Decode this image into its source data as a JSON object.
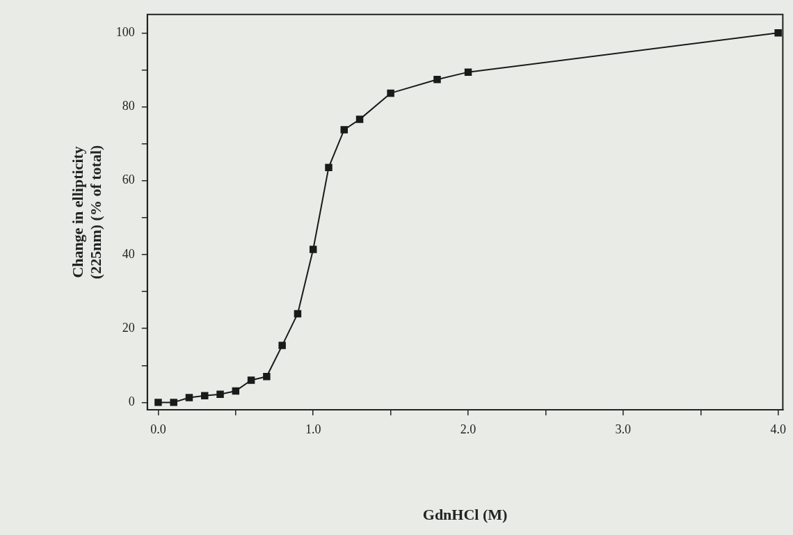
{
  "chart_data": {
    "type": "line",
    "xlabel": "GdnHCl (M)",
    "ylabel": "Change in ellipticity\n(225nm) (% of total)",
    "x": [
      0,
      0.1,
      0.2,
      0.3,
      0.4,
      0.5,
      0.6,
      0.7,
      0.8,
      0.9,
      1.0,
      1.1,
      1.2,
      1.3,
      1.5,
      1.8,
      2.0,
      4.0
    ],
    "series": [
      {
        "color": "#1a1a1a",
        "values": [
          0,
          0,
          1.3,
          1.8,
          2.2,
          3.1,
          6,
          7,
          15.4,
          24,
          41.4,
          63.6,
          73.8,
          76.6,
          83.7,
          87.4,
          89.4,
          100
        ]
      }
    ],
    "xlim": [
      -0.07,
      4.03
    ],
    "ylim": [
      -2,
      105
    ],
    "xticks": [
      {
        "value": 0,
        "label": "0.0"
      },
      {
        "value": 0.5,
        "label": null
      },
      {
        "value": 1,
        "label": "1.0"
      },
      {
        "value": 1.5,
        "label": null
      },
      {
        "value": 2,
        "label": "2.0"
      },
      {
        "value": 2.5,
        "label": null
      },
      {
        "value": 3,
        "label": "3.0"
      },
      {
        "value": 3.5,
        "label": null
      },
      {
        "value": 4,
        "label": "4.0"
      }
    ],
    "yticks": [
      0,
      {
        "value": 10,
        "label": null
      },
      20,
      {
        "value": 30,
        "label": null
      },
      40,
      {
        "value": 50,
        "label": null
      },
      60,
      {
        "value": 70,
        "label": null
      },
      80,
      {
        "value": 90,
        "label": null
      },
      100
    ],
    "grid": false,
    "legend": false,
    "marker": "square",
    "line_style": "solid"
  }
}
